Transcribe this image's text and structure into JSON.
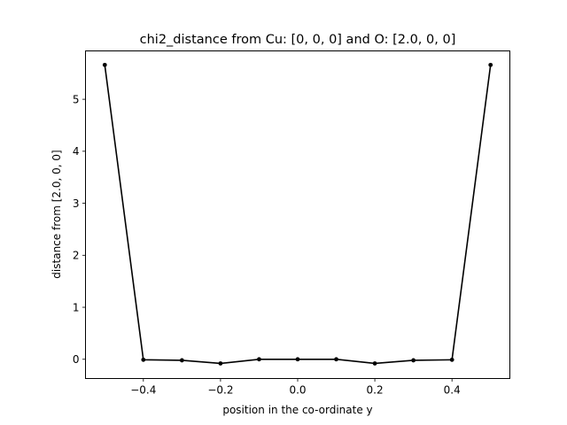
{
  "chart_data": {
    "type": "line",
    "title": "chi2_distance from Cu: [0, 0, 0] and O: [2.0, 0, 0]",
    "xlabel": "position in the co-ordinate y",
    "ylabel": "distance from [2.0, 0, 0]",
    "xlim": [
      -0.55,
      0.55
    ],
    "ylim": [
      -0.37,
      5.93
    ],
    "x_ticks": [
      -0.4,
      -0.2,
      0.0,
      0.2,
      0.4
    ],
    "x_tick_labels": [
      "−0.4",
      "−0.2",
      "0.0",
      "0.2",
      "0.4"
    ],
    "y_ticks": [
      0,
      1,
      2,
      3,
      4,
      5
    ],
    "y_tick_labels": [
      "0",
      "1",
      "2",
      "3",
      "4",
      "5"
    ],
    "grid": false,
    "series": [
      {
        "color": "#000000",
        "marker": "circle",
        "x": [
          -0.5,
          -0.4,
          -0.3,
          -0.2,
          -0.1,
          0.0,
          0.1,
          0.2,
          0.3,
          0.4,
          0.5
        ],
        "y": [
          5.66,
          -0.01,
          -0.02,
          -0.08,
          0.0,
          0.0,
          0.0,
          -0.08,
          -0.02,
          -0.01,
          5.66
        ]
      }
    ]
  }
}
